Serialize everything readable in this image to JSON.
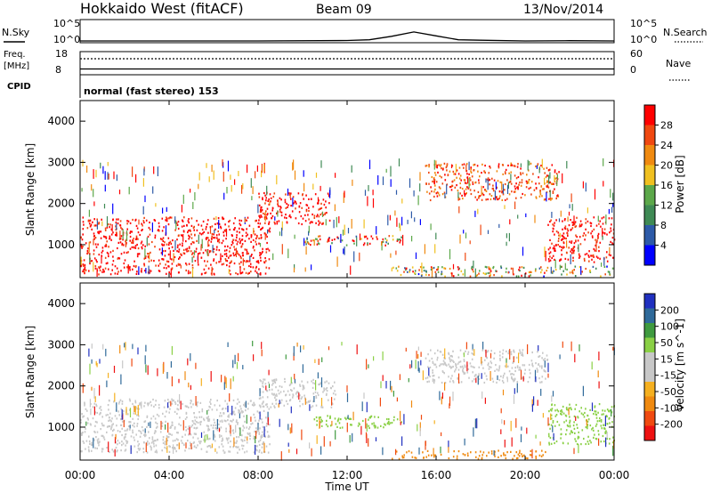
{
  "header": {
    "title": "Hokkaido West (fitACF)",
    "beam": "Beam 09",
    "date": "13/Nov/2014"
  },
  "aux_panels": {
    "nsky_label": "N.Sky",
    "nsearch_label": "N.Search",
    "freq_label_1": "Freq.",
    "freq_label_2": "[MHz]",
    "nave_label": "Nave",
    "cpid_label": "CPID",
    "cpid_text": "normal (fast stereo) 153",
    "noise_left_ticks": [
      "10^5",
      "10^0"
    ],
    "noise_right_ticks": [
      "10^5",
      "10^0"
    ],
    "freq_ticks": [
      "18",
      "8"
    ],
    "nave_ticks": [
      "60",
      "0"
    ]
  },
  "time_axis": {
    "label": "Time UT",
    "ticks": [
      "00:00",
      "04:00",
      "08:00",
      "12:00",
      "16:00",
      "20:00",
      "00:00"
    ]
  },
  "colors": {
    "power_scale": [
      "#0000ff",
      "#2d5aa8",
      "#3f8a55",
      "#5ca84a",
      "#f0c020",
      "#f08a10",
      "#f04810",
      "#ff0000"
    ],
    "velocity_scale": [
      "#ee1111",
      "#f04a10",
      "#f08a10",
      "#f5b020",
      "#c8c8c8",
      "#c8c8c8",
      "#8ad045",
      "#3f9a3f",
      "#2f6a9a",
      "#2030c0"
    ],
    "ground_scatter": "#b4b4b4"
  },
  "chart_data": [
    {
      "type": "line",
      "panel": "noise",
      "x": [
        0,
        4,
        8,
        12,
        13,
        14,
        15,
        16,
        17,
        18,
        20,
        22,
        24
      ],
      "series": [
        {
          "name": "N.Sky",
          "values": [
            1,
            1,
            1,
            1.3,
            2,
            15,
            200,
            20,
            2,
            1.5,
            1,
            1.2,
            1
          ]
        }
      ],
      "ylim": [
        1,
        100000
      ],
      "yscale": "log"
    },
    {
      "type": "line",
      "panel": "frequency_nave",
      "x": [
        0,
        24
      ],
      "series": [
        {
          "name": "Freq.",
          "values": [
            10.5,
            10.5
          ]
        }
      ],
      "ylim": [
        8,
        18
      ]
    },
    {
      "type": "heatmap",
      "title": "Power [dB]",
      "xlabel": "Time UT",
      "ylabel": "Slant Range [km]",
      "xlim": [
        0,
        24
      ],
      "ylim": [
        200,
        4500
      ],
      "colorbar": {
        "label": "Power [dB]",
        "ticks": [
          4,
          8,
          12,
          16,
          20,
          24,
          28
        ],
        "range": [
          0,
          32
        ]
      },
      "regions": [
        {
          "t": [
            0,
            8.5
          ],
          "r": [
            300,
            1700
          ],
          "value": 30
        },
        {
          "t": [
            8,
            11.2
          ],
          "r": [
            1500,
            2300
          ],
          "value": 30
        },
        {
          "t": [
            10,
            14.5
          ],
          "r": [
            1000,
            1250
          ],
          "value": 22
        },
        {
          "t": [
            15.5,
            21.5
          ],
          "r": [
            2100,
            3000
          ],
          "value": 26
        },
        {
          "t": [
            21,
            24
          ],
          "r": [
            600,
            1700
          ],
          "value": 30
        },
        {
          "t": [
            14,
            24
          ],
          "r": [
            250,
            500
          ],
          "value": 18
        }
      ]
    },
    {
      "type": "heatmap",
      "title": "Velocity [m s^-1]",
      "xlabel": "Time UT",
      "ylabel": "Slant Range [km]",
      "xlim": [
        0,
        24
      ],
      "ylim": [
        200,
        4500
      ],
      "colorbar": {
        "label": "Velocity [m s^-1]",
        "ticks": [
          200,
          100,
          50,
          15,
          -15,
          -50,
          -100,
          -200
        ],
        "range": [
          -250,
          250
        ]
      },
      "regions": [
        {
          "t": [
            0,
            8.5
          ],
          "r": [
            400,
            1700
          ],
          "value": 0
        },
        {
          "t": [
            8,
            11.5
          ],
          "r": [
            1500,
            2200
          ],
          "value": 0
        },
        {
          "t": [
            10.5,
            14.5
          ],
          "r": [
            1000,
            1300
          ],
          "value": 40
        },
        {
          "t": [
            15.5,
            21
          ],
          "r": [
            2100,
            2900
          ],
          "value": 0
        },
        {
          "t": [
            21,
            24
          ],
          "r": [
            600,
            1600
          ],
          "value": 40
        },
        {
          "t": [
            14,
            21
          ],
          "r": [
            250,
            450
          ],
          "value": -60
        }
      ]
    }
  ]
}
